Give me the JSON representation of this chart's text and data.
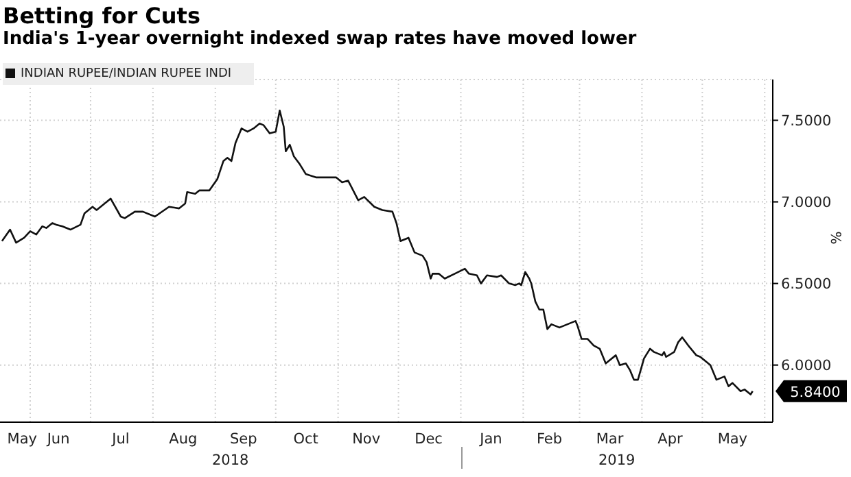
{
  "chart_data": {
    "type": "line",
    "title": "Betting for Cuts",
    "subtitle": "India's 1-year overnight indexed swap rates have moved lower",
    "ylabel": "%",
    "x": [
      "2018-05-18",
      "2018-05-22",
      "2018-05-25",
      "2018-05-29",
      "2018-06-01",
      "2018-06-04",
      "2018-06-07",
      "2018-06-09",
      "2018-06-12",
      "2018-06-14",
      "2018-06-17",
      "2018-06-21",
      "2018-06-26",
      "2018-06-28",
      "2018-07-02",
      "2018-07-04",
      "2018-07-11",
      "2018-07-16",
      "2018-07-18",
      "2018-07-23",
      "2018-07-27",
      "2018-08-02",
      "2018-08-09",
      "2018-08-14",
      "2018-08-17",
      "2018-08-18",
      "2018-08-22",
      "2018-08-24",
      "2018-08-29",
      "2018-09-02",
      "2018-09-05",
      "2018-09-07",
      "2018-09-09",
      "2018-09-11",
      "2018-09-14",
      "2018-09-17",
      "2018-09-20",
      "2018-09-23",
      "2018-09-25",
      "2018-09-28",
      "2018-10-01",
      "2018-10-03",
      "2018-10-05",
      "2018-10-06",
      "2018-10-08",
      "2018-10-10",
      "2018-10-13",
      "2018-10-16",
      "2018-10-21",
      "2018-10-26",
      "2018-10-31",
      "2018-11-03",
      "2018-11-06",
      "2018-11-11",
      "2018-11-14",
      "2018-11-19",
      "2018-11-23",
      "2018-11-28",
      "2018-11-30",
      "2018-12-02",
      "2018-12-06",
      "2018-12-09",
      "2018-12-13",
      "2018-12-15",
      "2018-12-17",
      "2018-12-18",
      "2018-12-21",
      "2018-12-24",
      "2018-12-29",
      "2019-01-03",
      "2019-01-05",
      "2019-01-09",
      "2019-01-11",
      "2019-01-14",
      "2019-01-19",
      "2019-01-21",
      "2019-01-25",
      "2019-01-28",
      "2019-01-30",
      "2019-01-31",
      "2019-02-02",
      "2019-02-04",
      "2019-02-05",
      "2019-02-07",
      "2019-02-09",
      "2019-02-11",
      "2019-02-13",
      "2019-02-15",
      "2019-02-19",
      "2019-02-23",
      "2019-02-27",
      "2019-02-28",
      "2019-03-02",
      "2019-03-05",
      "2019-03-08",
      "2019-03-11",
      "2019-03-14",
      "2019-03-19",
      "2019-03-21",
      "2019-03-24",
      "2019-03-26",
      "2019-03-28",
      "2019-03-30",
      "2019-04-02",
      "2019-04-05",
      "2019-04-07",
      "2019-04-11",
      "2019-04-12",
      "2019-04-13",
      "2019-04-17",
      "2019-04-19",
      "2019-04-21",
      "2019-04-24",
      "2019-04-28",
      "2019-04-30",
      "2019-05-05",
      "2019-05-08",
      "2019-05-12",
      "2019-05-14",
      "2019-05-16",
      "2019-05-20",
      "2019-05-22",
      "2019-05-25",
      "2019-05-26"
    ],
    "series": [
      {
        "name": "INDIAN RUPEE/INDIAN RUPEE INDI",
        "color": "#111111",
        "values": [
          6.76,
          6.83,
          6.75,
          6.78,
          6.82,
          6.8,
          6.85,
          6.84,
          6.87,
          6.86,
          6.85,
          6.83,
          6.86,
          6.93,
          6.97,
          6.95,
          7.02,
          6.91,
          6.9,
          6.94,
          6.94,
          6.91,
          6.97,
          6.96,
          6.99,
          7.06,
          7.05,
          7.07,
          7.07,
          7.14,
          7.25,
          7.27,
          7.25,
          7.36,
          7.45,
          7.43,
          7.45,
          7.48,
          7.47,
          7.42,
          7.43,
          7.56,
          7.46,
          7.31,
          7.35,
          7.28,
          7.23,
          7.17,
          7.15,
          7.15,
          7.15,
          7.12,
          7.13,
          7.01,
          7.03,
          6.97,
          6.95,
          6.94,
          6.87,
          6.76,
          6.78,
          6.69,
          6.67,
          6.63,
          6.53,
          6.56,
          6.56,
          6.53,
          6.56,
          6.59,
          6.56,
          6.55,
          6.5,
          6.55,
          6.54,
          6.55,
          6.5,
          6.49,
          6.5,
          6.49,
          6.57,
          6.53,
          6.5,
          6.39,
          6.34,
          6.34,
          6.22,
          6.25,
          6.23,
          6.25,
          6.27,
          6.24,
          6.16,
          6.16,
          6.12,
          6.1,
          6.01,
          6.06,
          6.0,
          6.01,
          5.97,
          5.91,
          5.91,
          6.04,
          6.1,
          6.08,
          6.06,
          6.08,
          6.05,
          6.08,
          6.14,
          6.17,
          6.12,
          6.06,
          6.05,
          6.0,
          5.91,
          5.93,
          5.87,
          5.89,
          5.84,
          5.85,
          5.82,
          5.84
        ]
      }
    ],
    "xlim": [
      "2018-05-17",
      "2019-06-05"
    ],
    "xticks": [
      {
        "value": "2018-05-28",
        "label": "May"
      },
      {
        "value": "2018-06-01",
        "label": null
      },
      {
        "value": "2018-06-15",
        "label": "Jun"
      },
      {
        "value": "2018-07-01",
        "label": null
      },
      {
        "value": "2018-07-16",
        "label": "Jul"
      },
      {
        "value": "2018-08-01",
        "label": null
      },
      {
        "value": "2018-08-16",
        "label": "Aug"
      },
      {
        "value": "2018-09-01",
        "label": null
      },
      {
        "value": "2018-09-15",
        "label": "Sep"
      },
      {
        "value": "2018-10-01",
        "label": null
      },
      {
        "value": "2018-10-16",
        "label": "Oct"
      },
      {
        "value": "2018-11-01",
        "label": null
      },
      {
        "value": "2018-11-15",
        "label": "Nov"
      },
      {
        "value": "2018-12-01",
        "label": null
      },
      {
        "value": "2018-12-16",
        "label": "Dec"
      },
      {
        "value": "2019-01-01",
        "label": null
      },
      {
        "value": "2019-01-16",
        "label": "Jan"
      },
      {
        "value": "2019-02-01",
        "label": null
      },
      {
        "value": "2019-02-14",
        "label": "Feb"
      },
      {
        "value": "2019-03-01",
        "label": null
      },
      {
        "value": "2019-03-16",
        "label": "Mar"
      },
      {
        "value": "2019-04-01",
        "label": null
      },
      {
        "value": "2019-04-15",
        "label": "Apr"
      },
      {
        "value": "2019-05-01",
        "label": null
      },
      {
        "value": "2019-05-16",
        "label": "May"
      },
      {
        "value": "2019-06-01",
        "label": null
      }
    ],
    "ylim": [
      5.65,
      7.75
    ],
    "yticks": [
      {
        "value": 6,
        "label": "6.0000"
      },
      {
        "value": 6.5,
        "label": "6.5000"
      },
      {
        "value": 7,
        "label": "7.0000"
      },
      {
        "value": 7.5,
        "label": "7.5000"
      }
    ],
    "annotations": [
      "2018",
      "2019",
      {
        "text": "5.8400",
        "x": "2019-05-26",
        "y": 5.84
      }
    ],
    "grid": true,
    "legend": "top left",
    "marker": "none",
    "line_style": "solid"
  }
}
